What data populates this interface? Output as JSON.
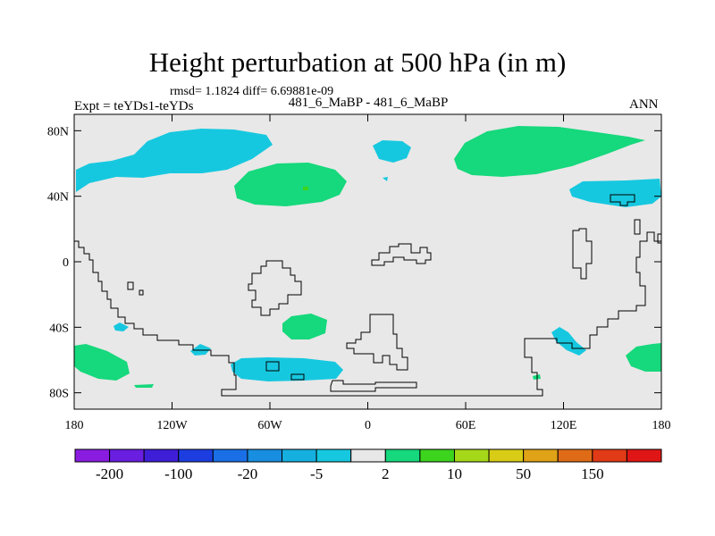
{
  "chart_data": {
    "type": "contour-map",
    "title": "Height perturbation at 500 hPa (in m)",
    "stats_text": "rmsd= 1.1824  diff= 6.69881e-09",
    "left_label": "Expt = teYDs1-teYDs",
    "center_label": "481_6_MaBP - 481_6_MaBP",
    "right_label": "ANN",
    "x_ticks": [
      "180",
      "120W",
      "60W",
      "0",
      "60E",
      "120E",
      "180"
    ],
    "x_tick_values": [
      -180,
      -120,
      -60,
      0,
      60,
      120,
      180
    ],
    "y_ticks": [
      "80N",
      "40N",
      "0",
      "40S",
      "80S"
    ],
    "y_tick_values": [
      80,
      40,
      0,
      -40,
      -80
    ],
    "xlim": [
      -180,
      180
    ],
    "ylim": [
      -90,
      90
    ],
    "colorbar": {
      "colors": [
        "#8a1ce0",
        "#6a1ee0",
        "#3f1ed8",
        "#1c3ee0",
        "#1a6fe6",
        "#178ee0",
        "#16b0e0",
        "#16c8df",
        "#e8e8e8",
        "#16d87c",
        "#3dd41e",
        "#a6d81a",
        "#d8cc16",
        "#e0a216",
        "#e06b16",
        "#e03a16",
        "#e01616"
      ],
      "labels": [
        "-200",
        "-100",
        "-20",
        "-5",
        "2",
        "10",
        "50",
        "150"
      ]
    }
  }
}
